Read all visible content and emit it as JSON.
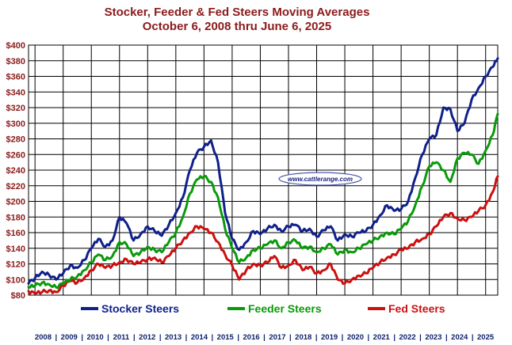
{
  "chart_data": {
    "type": "line",
    "title": "Stocker, Feeder & Fed Steers Moving Averages",
    "subtitle": "October 6, 2008 thru June 6, 2025",
    "ylim": [
      80,
      400
    ],
    "xlim": [
      2008.77,
      2025.43
    ],
    "y_ticks": [
      "$80",
      "$100",
      "$120",
      "$140",
      "$160",
      "$180",
      "$200",
      "$220",
      "$240",
      "$260",
      "$280",
      "$300",
      "$320",
      "$340",
      "$360",
      "$380",
      "$400"
    ],
    "x_ticks": [
      "2008",
      "2009",
      "2010",
      "2011",
      "2012",
      "2013",
      "2014",
      "2015",
      "2016",
      "2017",
      "2018",
      "2019",
      "2020",
      "2021",
      "2022",
      "2023",
      "2024",
      "2025"
    ],
    "grid": "horizontal and vertical",
    "legend_position": "bottom",
    "watermark": "www.cattlerange.com",
    "series": [
      {
        "name": "Stocker Steers",
        "color": "#10208a",
        "x": [
          2008.77,
          2009.0,
          2009.25,
          2009.5,
          2009.75,
          2010.0,
          2010.25,
          2010.5,
          2010.75,
          2011.0,
          2011.25,
          2011.5,
          2011.75,
          2012.0,
          2012.25,
          2012.5,
          2012.75,
          2013.0,
          2013.25,
          2013.5,
          2013.75,
          2014.0,
          2014.25,
          2014.5,
          2014.75,
          2015.0,
          2015.25,
          2015.5,
          2015.75,
          2016.0,
          2016.25,
          2016.5,
          2016.75,
          2017.0,
          2017.25,
          2017.5,
          2017.75,
          2018.0,
          2018.25,
          2018.5,
          2018.75,
          2019.0,
          2019.25,
          2019.5,
          2019.75,
          2020.0,
          2020.25,
          2020.5,
          2020.75,
          2021.0,
          2021.25,
          2021.5,
          2021.75,
          2022.0,
          2022.25,
          2022.5,
          2022.75,
          2023.0,
          2023.25,
          2023.5,
          2023.75,
          2024.0,
          2024.25,
          2024.5,
          2024.75,
          2025.0,
          2025.25,
          2025.43
        ],
        "y": [
          95,
          102,
          110,
          106,
          100,
          108,
          118,
          115,
          125,
          140,
          152,
          142,
          150,
          180,
          172,
          150,
          158,
          168,
          162,
          156,
          170,
          185,
          205,
          240,
          262,
          270,
          278,
          250,
          185,
          152,
          138,
          148,
          162,
          158,
          165,
          170,
          162,
          168,
          170,
          162,
          165,
          155,
          163,
          168,
          150,
          158,
          155,
          160,
          162,
          170,
          182,
          195,
          188,
          190,
          200,
          230,
          260,
          280,
          285,
          320,
          318,
          290,
          300,
          330,
          345,
          360,
          372,
          383
        ]
      },
      {
        "name": "Feeder Steers",
        "color": "#0a9a0a",
        "x": [
          2008.77,
          2009.0,
          2009.25,
          2009.5,
          2009.75,
          2010.0,
          2010.25,
          2010.5,
          2010.75,
          2011.0,
          2011.25,
          2011.5,
          2011.75,
          2012.0,
          2012.25,
          2012.5,
          2012.75,
          2013.0,
          2013.25,
          2013.5,
          2013.75,
          2014.0,
          2014.25,
          2014.5,
          2014.75,
          2015.0,
          2015.25,
          2015.5,
          2015.75,
          2016.0,
          2016.25,
          2016.5,
          2016.75,
          2017.0,
          2017.25,
          2017.5,
          2017.75,
          2018.0,
          2018.25,
          2018.5,
          2018.75,
          2019.0,
          2019.25,
          2019.5,
          2019.75,
          2020.0,
          2020.25,
          2020.5,
          2020.75,
          2021.0,
          2021.25,
          2021.5,
          2021.75,
          2022.0,
          2022.25,
          2022.5,
          2022.75,
          2023.0,
          2023.25,
          2023.5,
          2023.75,
          2024.0,
          2024.25,
          2024.5,
          2024.75,
          2025.0,
          2025.25,
          2025.43
        ],
        "y": [
          90,
          92,
          96,
          94,
          90,
          95,
          100,
          104,
          112,
          122,
          132,
          125,
          130,
          148,
          145,
          130,
          135,
          142,
          138,
          135,
          148,
          160,
          180,
          210,
          228,
          232,
          225,
          205,
          165,
          140,
          122,
          128,
          138,
          140,
          145,
          150,
          140,
          148,
          150,
          140,
          142,
          135,
          140,
          145,
          132,
          138,
          135,
          140,
          145,
          150,
          155,
          160,
          158,
          165,
          175,
          195,
          220,
          245,
          250,
          240,
          225,
          255,
          262,
          260,
          248,
          265,
          285,
          312
        ]
      },
      {
        "name": "Fed Steers",
        "color": "#cc1010",
        "x": [
          2008.77,
          2009.0,
          2009.25,
          2009.5,
          2009.75,
          2010.0,
          2010.25,
          2010.5,
          2010.75,
          2011.0,
          2011.25,
          2011.5,
          2011.75,
          2012.0,
          2012.25,
          2012.5,
          2012.75,
          2013.0,
          2013.25,
          2013.5,
          2013.75,
          2014.0,
          2014.25,
          2014.5,
          2014.75,
          2015.0,
          2015.25,
          2015.5,
          2015.75,
          2016.0,
          2016.25,
          2016.5,
          2016.75,
          2017.0,
          2017.25,
          2017.5,
          2017.75,
          2018.0,
          2018.25,
          2018.5,
          2018.75,
          2019.0,
          2019.25,
          2019.5,
          2019.75,
          2020.0,
          2020.25,
          2020.5,
          2020.75,
          2021.0,
          2021.25,
          2021.5,
          2021.75,
          2022.0,
          2022.25,
          2022.5,
          2022.75,
          2023.0,
          2023.25,
          2023.5,
          2023.75,
          2024.0,
          2024.25,
          2024.5,
          2024.75,
          2025.0,
          2025.25,
          2025.43
        ],
        "y": [
          85,
          82,
          84,
          86,
          84,
          92,
          98,
          96,
          102,
          112,
          120,
          115,
          118,
          122,
          126,
          120,
          122,
          126,
          128,
          122,
          130,
          140,
          150,
          160,
          168,
          165,
          160,
          148,
          132,
          118,
          100,
          112,
          120,
          118,
          122,
          130,
          115,
          118,
          125,
          112,
          116,
          108,
          112,
          120,
          100,
          95,
          100,
          105,
          108,
          115,
          122,
          128,
          132,
          138,
          140,
          148,
          152,
          158,
          168,
          180,
          185,
          178,
          176,
          180,
          188,
          195,
          212,
          232
        ]
      }
    ]
  }
}
